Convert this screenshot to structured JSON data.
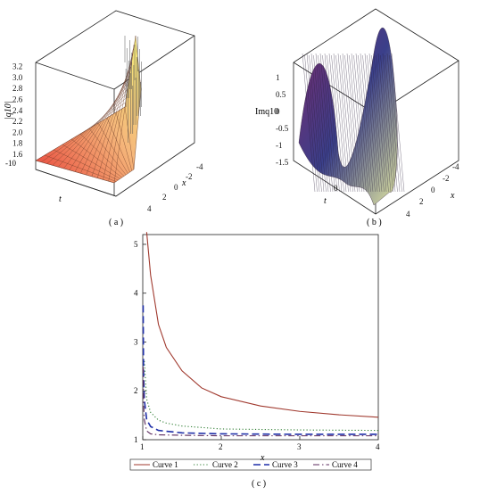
{
  "chart_data": [
    {
      "type": "surface3d",
      "panel_label": "( a )",
      "zlabel": "|q10|",
      "xlabel": "x",
      "ylabel": "t",
      "x_ticks": [
        "-4",
        "-2",
        "0",
        "2",
        "4"
      ],
      "t_ticks": [
        "-10"
      ],
      "z_ticks": [
        "1.6",
        "1.8",
        "2.0",
        "2.2",
        "2.4",
        "2.6",
        "2.8",
        "3.0",
        "3.2"
      ],
      "colors": {
        "low": "#e8453c",
        "mid": "#f5b67a",
        "high": "#f3f07a"
      }
    },
    {
      "type": "surface3d",
      "panel_label": "( b )",
      "zlabel": "Imq10",
      "xlabel": "x",
      "ylabel": "t",
      "x_ticks": [
        "-4",
        "-2",
        "0",
        "2",
        "4"
      ],
      "t_ticks": [
        "0"
      ],
      "z_ticks": [
        "1",
        "0.5",
        "0",
        "-0.5",
        "-1",
        "-1.5"
      ],
      "colors": {
        "low": "#7a2a6e",
        "mid": "#3a3f8a",
        "high": "#e0e6a0"
      }
    },
    {
      "type": "line",
      "panel_label": "( c )",
      "xlabel": "x",
      "ylabel": "",
      "xlim": [
        1,
        4
      ],
      "ylim": [
        1,
        5.2
      ],
      "x_ticks": [
        1,
        2,
        3,
        4
      ],
      "y_ticks": [
        1,
        2,
        3,
        4,
        5
      ],
      "legend_placement": "bottom",
      "series": [
        {
          "name": "Curve 1",
          "color": "#a0392e",
          "dash": "solid",
          "x": [
            1.05,
            1.1,
            1.2,
            1.3,
            1.5,
            1.75,
            2.0,
            2.5,
            3.0,
            3.5,
            4.0
          ],
          "y": [
            5.25,
            4.37,
            3.36,
            2.89,
            2.41,
            2.06,
            1.88,
            1.69,
            1.58,
            1.51,
            1.46
          ]
        },
        {
          "name": "Curve 2",
          "color": "#2e7d32",
          "dash": "dotted",
          "x": [
            1.02,
            1.05,
            1.1,
            1.2,
            1.3,
            1.5,
            2.0,
            3.0,
            4.0
          ],
          "y": [
            2.61,
            1.83,
            1.56,
            1.4,
            1.34,
            1.28,
            1.22,
            1.2,
            1.19
          ]
        },
        {
          "name": "Curve 3",
          "color": "#1f2fa8",
          "dash": "dashed",
          "x": [
            1.005,
            1.01,
            1.02,
            1.05,
            1.1,
            1.2,
            1.5,
            2.0,
            3.0,
            4.0
          ],
          "y": [
            3.75,
            2.39,
            1.82,
            1.41,
            1.27,
            1.19,
            1.14,
            1.12,
            1.11,
            1.11
          ]
        },
        {
          "name": "Curve 4",
          "color": "#5b2a5e",
          "dash": "dashdot",
          "x": [
            1.005,
            1.01,
            1.02,
            1.05,
            1.1,
            1.2,
            1.5,
            2.0,
            3.0,
            4.0
          ],
          "y": [
            2.49,
            1.76,
            1.41,
            1.18,
            1.12,
            1.1,
            1.09,
            1.08,
            1.08,
            1.08
          ]
        }
      ]
    }
  ]
}
